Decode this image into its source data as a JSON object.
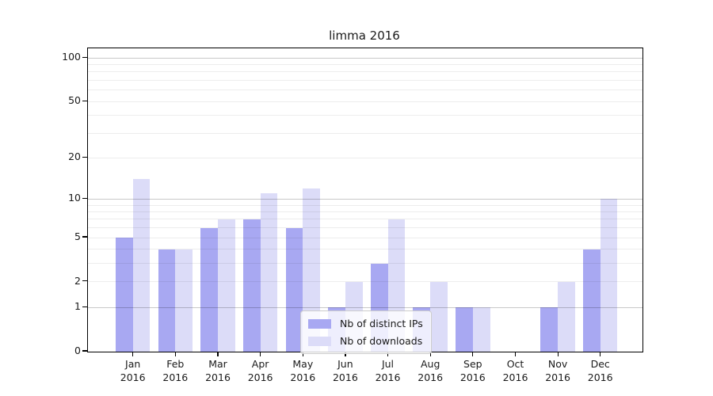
{
  "title": "limma 2016",
  "chart_data": {
    "type": "bar",
    "title": "limma 2016",
    "scale": "log1p",
    "year_label": "2016",
    "categories": [
      "Jan",
      "Feb",
      "Mar",
      "Apr",
      "May",
      "Jun",
      "Jul",
      "Aug",
      "Sep",
      "Oct",
      "Nov",
      "Dec"
    ],
    "series": [
      {
        "name": "Nb of distinct IPs",
        "color": "#a8a8f2",
        "values": [
          5,
          4,
          6,
          7,
          6,
          1,
          3,
          1,
          1,
          0,
          1,
          4
        ]
      },
      {
        "name": "Nb of downloads",
        "color": "#dcdcf8",
        "values": [
          14,
          4,
          7,
          11,
          12,
          2,
          7,
          2,
          1,
          0,
          2,
          10
        ]
      }
    ],
    "yticks": [
      0,
      1,
      2,
      5,
      10,
      20,
      50,
      100
    ],
    "grid_major": [
      1,
      10,
      100
    ],
    "grid_minor": [
      2,
      3,
      4,
      5,
      6,
      7,
      8,
      9,
      20,
      30,
      40,
      50,
      60,
      70,
      80,
      90
    ],
    "ylim": [
      0,
      116
    ],
    "xlabel": "",
    "ylabel": "",
    "legend_position": "lower center",
    "legend_entries": [
      "Nb of distinct IPs",
      "Nb of downloads"
    ]
  }
}
